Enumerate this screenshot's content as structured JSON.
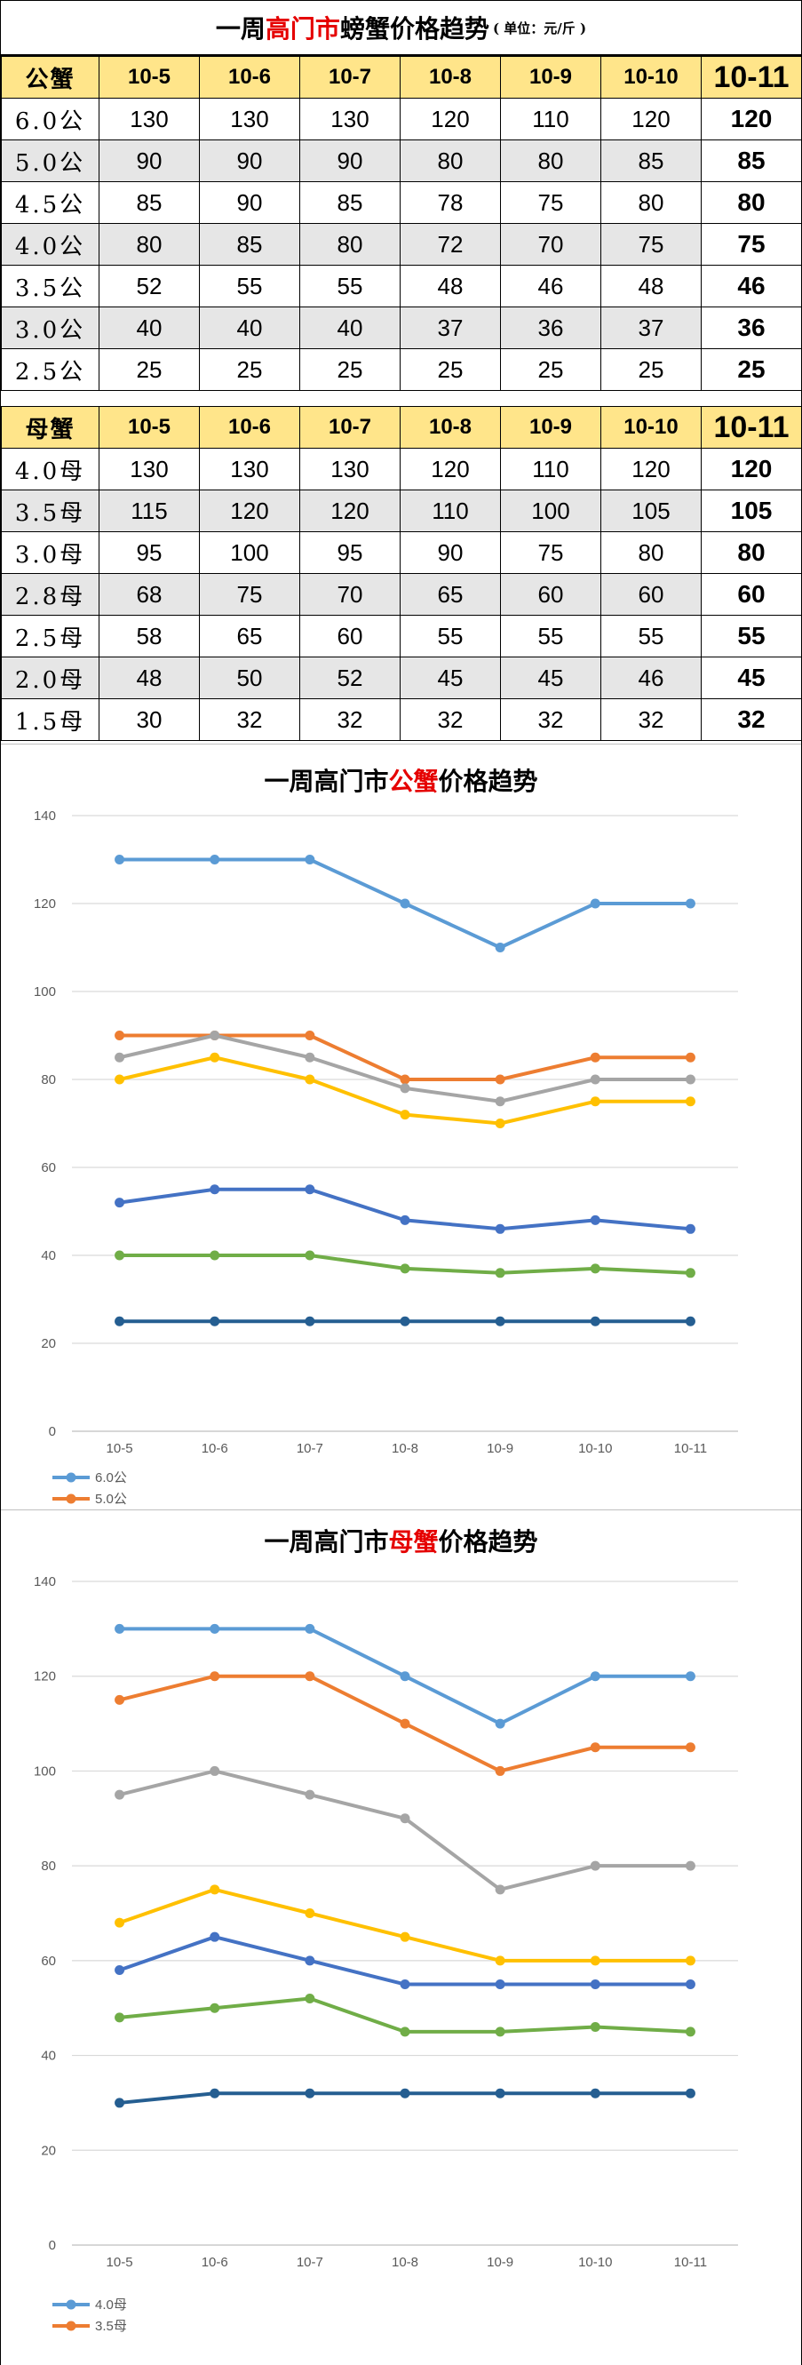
{
  "table": {
    "title_pre": "一周",
    "title_hl": "高门市",
    "title_post": "螃蟹价格趋势",
    "unit": "( 单位：元/斤 )",
    "dates": [
      "10-5",
      "10-6",
      "10-7",
      "10-8",
      "10-9",
      "10-10",
      "10-11"
    ],
    "male": {
      "header": "公蟹",
      "rows": [
        {
          "label": "6.0公",
          "values": [
            130,
            130,
            130,
            120,
            110,
            120,
            120
          ]
        },
        {
          "label": "5.0公",
          "values": [
            90,
            90,
            90,
            80,
            80,
            85,
            85
          ]
        },
        {
          "label": "4.5公",
          "values": [
            85,
            90,
            85,
            78,
            75,
            80,
            80
          ]
        },
        {
          "label": "4.0公",
          "values": [
            80,
            85,
            80,
            72,
            70,
            75,
            75
          ]
        },
        {
          "label": "3.5公",
          "values": [
            52,
            55,
            55,
            48,
            46,
            48,
            46
          ]
        },
        {
          "label": "3.0公",
          "values": [
            40,
            40,
            40,
            37,
            36,
            37,
            36
          ]
        },
        {
          "label": "2.5公",
          "values": [
            25,
            25,
            25,
            25,
            25,
            25,
            25
          ]
        }
      ]
    },
    "female": {
      "header": "母蟹",
      "rows": [
        {
          "label": "4.0母",
          "values": [
            130,
            130,
            130,
            120,
            110,
            120,
            120
          ]
        },
        {
          "label": "3.5母",
          "values": [
            115,
            120,
            120,
            110,
            100,
            105,
            105
          ]
        },
        {
          "label": "3.0母",
          "values": [
            95,
            100,
            95,
            90,
            75,
            80,
            80
          ]
        },
        {
          "label": "2.8母",
          "values": [
            68,
            75,
            70,
            65,
            60,
            60,
            60
          ]
        },
        {
          "label": "2.5母",
          "values": [
            58,
            65,
            60,
            55,
            55,
            55,
            55
          ]
        },
        {
          "label": "2.0母",
          "values": [
            48,
            50,
            52,
            45,
            45,
            46,
            45
          ]
        },
        {
          "label": "1.5母",
          "values": [
            30,
            32,
            32,
            32,
            32,
            32,
            32
          ]
        }
      ]
    }
  },
  "chart_data": [
    {
      "type": "line",
      "title_pre": "一周高门市",
      "title_hl": "公蟹",
      "title_post": "价格趋势",
      "categories": [
        "10-5",
        "10-6",
        "10-7",
        "10-8",
        "10-9",
        "10-10",
        "10-11"
      ],
      "ylim": [
        0,
        140
      ],
      "yticks": [
        0,
        20,
        40,
        60,
        80,
        100,
        120,
        140
      ],
      "grid": true,
      "legend": "bottom-left",
      "series": [
        {
          "name": "6.0公",
          "color": "#5b9bd5",
          "values": [
            130,
            130,
            130,
            120,
            110,
            120,
            120
          ]
        },
        {
          "name": "5.0公",
          "color": "#ed7d31",
          "values": [
            90,
            90,
            90,
            80,
            80,
            85,
            85
          ]
        },
        {
          "name": "",
          "color": "#a5a5a5",
          "values": [
            85,
            90,
            85,
            78,
            75,
            80,
            80
          ]
        },
        {
          "name": "",
          "color": "#ffc000",
          "values": [
            80,
            85,
            80,
            72,
            70,
            75,
            75
          ]
        },
        {
          "name": "",
          "color": "#4472c4",
          "values": [
            52,
            55,
            55,
            48,
            46,
            48,
            46
          ]
        },
        {
          "name": "",
          "color": "#70ad47",
          "values": [
            40,
            40,
            40,
            37,
            36,
            37,
            36
          ]
        },
        {
          "name": "",
          "color": "#255e91",
          "values": [
            25,
            25,
            25,
            25,
            25,
            25,
            25
          ]
        }
      ]
    },
    {
      "type": "line",
      "title_pre": "一周高门市",
      "title_hl": "母蟹",
      "title_post": "价格趋势",
      "categories": [
        "10-5",
        "10-6",
        "10-7",
        "10-8",
        "10-9",
        "10-10",
        "10-11"
      ],
      "ylim": [
        0,
        140
      ],
      "yticks": [
        0,
        20,
        40,
        60,
        80,
        100,
        120,
        140
      ],
      "grid": true,
      "legend": "bottom-left",
      "series": [
        {
          "name": "4.0母",
          "color": "#5b9bd5",
          "values": [
            130,
            130,
            130,
            120,
            110,
            120,
            120
          ]
        },
        {
          "name": "3.5母",
          "color": "#ed7d31",
          "values": [
            115,
            120,
            120,
            110,
            100,
            105,
            105
          ]
        },
        {
          "name": "",
          "color": "#a5a5a5",
          "values": [
            95,
            100,
            95,
            90,
            75,
            80,
            80
          ]
        },
        {
          "name": "",
          "color": "#ffc000",
          "values": [
            68,
            75,
            70,
            65,
            60,
            60,
            60
          ]
        },
        {
          "name": "",
          "color": "#4472c4",
          "values": [
            58,
            65,
            60,
            55,
            55,
            55,
            55
          ]
        },
        {
          "name": "",
          "color": "#70ad47",
          "values": [
            48,
            50,
            52,
            45,
            45,
            46,
            45
          ]
        },
        {
          "name": "",
          "color": "#255e91",
          "values": [
            30,
            32,
            32,
            32,
            32,
            32,
            32
          ]
        }
      ]
    }
  ]
}
